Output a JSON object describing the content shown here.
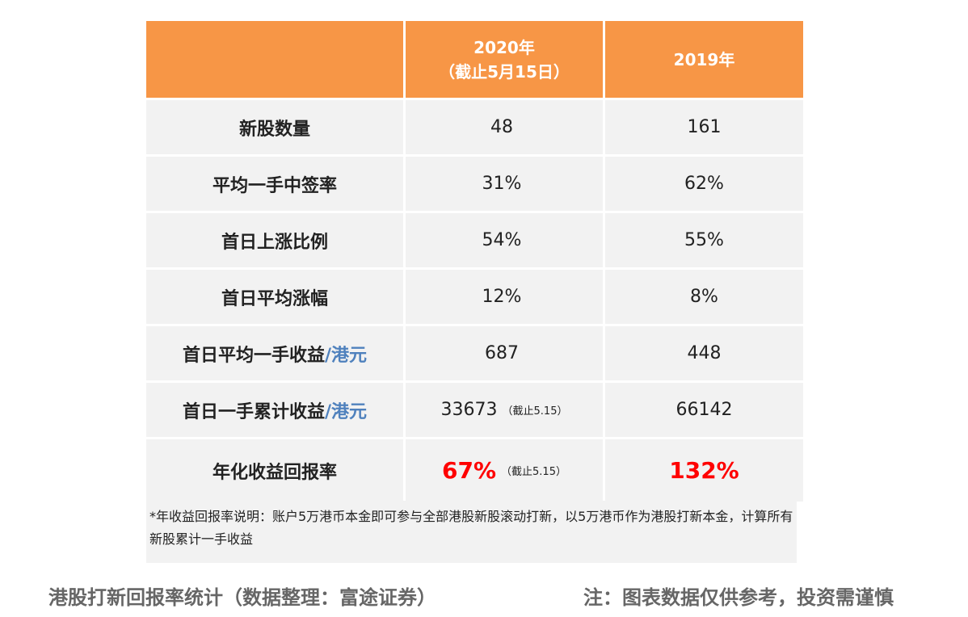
{
  "header": {
    "col0": "",
    "col1_line1": "2020年",
    "col1_line2": "（截止5月15日）",
    "col2": "2019年"
  },
  "rows": [
    {
      "label": "新股数量",
      "unit": "",
      "v2020": "48",
      "v2020_note": "",
      "v2019": "161"
    },
    {
      "label": "平均一手中签率",
      "unit": "",
      "v2020": "31%",
      "v2020_note": "",
      "v2019": "62%"
    },
    {
      "label": "首日上涨比例",
      "unit": "",
      "v2020": "54%",
      "v2020_note": "",
      "v2019": "55%"
    },
    {
      "label": "首日平均涨幅",
      "unit": "",
      "v2020": "12%",
      "v2020_note": "",
      "v2019": "8%"
    },
    {
      "label": "首日平均一手收益",
      "unit": "/港元",
      "v2020": "687",
      "v2020_note": "",
      "v2019": "448"
    },
    {
      "label": "首日一手累计收益",
      "unit": "/港元",
      "v2020": "33673",
      "v2020_note": "（截止5.15）",
      "v2019": "66142"
    },
    {
      "label": "年化收益回报率",
      "unit": "",
      "v2020": "67%",
      "v2020_note": "（截止5.15）",
      "v2019": "132%"
    }
  ],
  "note": "*年收益回报率说明：账户5万港币本金即可参与全部港股新股滚动打新，以5万港币作为港股打新本金，计算所有新股累计一手收益",
  "caption_left": "港股打新回报率统计（数据整理：富途证券）",
  "caption_right": "注：图表数据仅供参考，投资需谨慎",
  "colors": {
    "header": "#f79646",
    "cell": "#f2f2f2",
    "highlight": "#ff0000",
    "unit": "#4f81bd"
  }
}
